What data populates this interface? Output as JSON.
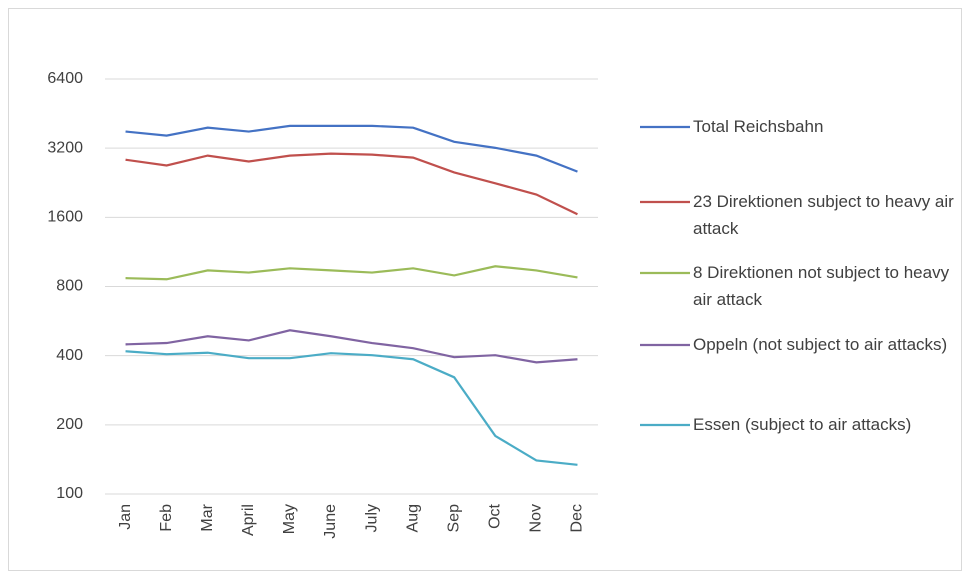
{
  "chart_data": {
    "type": "line",
    "yscale": "log",
    "grid": true,
    "legend": "right",
    "categories": [
      "Jan",
      "Feb",
      "Mar",
      "April",
      "May",
      "June",
      "July",
      "Aug",
      "Sep",
      "Oct",
      "Nov",
      "Dec"
    ],
    "ylim": [
      100,
      6400
    ],
    "yticks": [
      100,
      200,
      400,
      800,
      1600,
      3200,
      6400
    ],
    "series": [
      {
        "name": "Total Reichsbahn",
        "color": "#4472c4",
        "values": [
          3780,
          3630,
          3930,
          3780,
          4000,
          4000,
          4000,
          3930,
          3410,
          3210,
          2970,
          2530
        ]
      },
      {
        "name": "23 Direktionen subject to heavy air attack",
        "color": "#c0504d",
        "values": [
          2850,
          2690,
          2970,
          2800,
          2970,
          3030,
          3000,
          2910,
          2510,
          2250,
          2010,
          1650
        ]
      },
      {
        "name": "8 Direktionen not subject to heavy air attack",
        "color": "#9bbb59",
        "values": [
          870,
          860,
          940,
          920,
          960,
          940,
          920,
          960,
          894,
          980,
          940,
          876
        ]
      },
      {
        "name": "Oppeln (not subject to air attacks)",
        "color": "#8064a2",
        "values": [
          448,
          454,
          486,
          466,
          516,
          486,
          454,
          431,
          394,
          402,
          374,
          386
        ]
      },
      {
        "name": "Essen (subject to air attacks)",
        "color": "#4bacc6",
        "values": [
          418,
          406,
          412,
          390,
          390,
          410,
          402,
          386,
          322,
          179,
          140,
          134
        ]
      }
    ]
  }
}
